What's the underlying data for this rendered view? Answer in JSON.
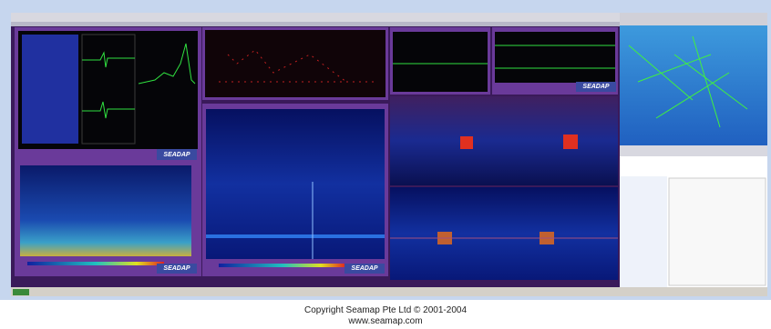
{
  "panels": [
    {
      "logo": "SEADAP"
    },
    {
      "logo": "SEADAP"
    },
    {
      "logo": "SEADAP"
    },
    {
      "logo": "SEADAP"
    }
  ],
  "footer": {
    "copyright": "Copyright Seamap Pte Ltd © 2001-2004",
    "url": "www.seamap.com"
  }
}
